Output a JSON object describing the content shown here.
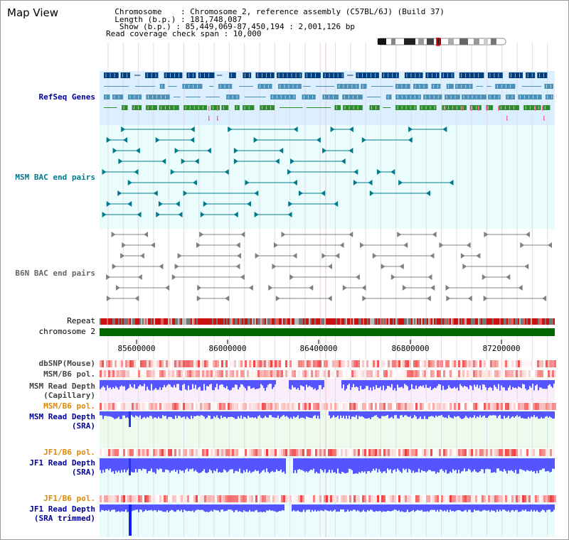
{
  "title": "Map View",
  "header": {
    "line1": "  Chromosome    : Chromosome 2, reference assembly (C57BL/6J) (Build 37)",
    "line2": "  Length (b.p.) : 181,748,087",
    "line3": "   Show (b.p.) : 85,449,069-87,450,194 : 2,001,126 bp",
    "line4": "Read coverage check span : 10,000"
  },
  "tracks": {
    "refseq": "RefSeq Genes",
    "msm_bac": "MSM BAC end pairs",
    "b6n_bac": "B6N BAC end pairs",
    "repeat": "Repeat",
    "chromosome": "chromosome 2",
    "dbsnp": "dbSNP(Mouse)",
    "msm_pol1": "MSM/B6 pol.",
    "msm_depth_cap_1": "MSM Read Depth",
    "msm_depth_cap_2": "(Capillary)",
    "msm_pol2": "MSM/B6 pol.",
    "msm_depth_sra_1": "MSM Read Depth",
    "msm_depth_sra_2": "(SRA)",
    "jf1_pol1": "JF1/B6 pol.",
    "jf1_depth_sra_1": "JF1 Read Depth",
    "jf1_depth_sra_2": "(SRA)",
    "jf1_pol2": "JF1/B6 pol.",
    "jf1_depth_trim_1": "JF1 Read Depth",
    "jf1_depth_trim_2": "(SRA trimmed)"
  },
  "axis_ticks": [
    "85600000",
    "86000000",
    "86400000",
    "86800000",
    "87200000"
  ],
  "colors": {
    "refseq_navy": "#003f7f",
    "refseq_blue": "#4a90b8",
    "refseq_green": "#2e8b2e",
    "bac_teal": "#007b8c",
    "b6n_gray": "#808080",
    "chrom_green": "#006600",
    "depth_blue": "#5555ff",
    "pol_red": "#ee2222"
  }
}
